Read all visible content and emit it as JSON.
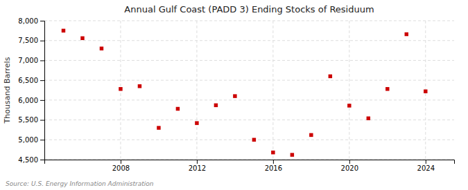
{
  "chart_data": {
    "type": "scatter",
    "title": "Annual Gulf Coast (PADD 3) Ending Stocks of Residuum",
    "ylabel": "Thousand Barrels",
    "x": [
      2005,
      2006,
      2007,
      2008,
      2009,
      2010,
      2011,
      2012,
      2013,
      2014,
      2015,
      2016,
      2017,
      2018,
      2019,
      2020,
      2021,
      2022,
      2023,
      2024
    ],
    "values": [
      7750,
      7560,
      7300,
      6280,
      6350,
      5300,
      5780,
      5420,
      5870,
      6100,
      5000,
      4680,
      4620,
      5120,
      6600,
      5860,
      5540,
      6280,
      7660,
      6220
    ],
    "color": "#cc0000",
    "marker": "square",
    "xlim": [
      2004,
      2025.5
    ],
    "xticks": [
      2008,
      2012,
      2016,
      2020,
      2024
    ],
    "ylim": [
      4500,
      8000
    ],
    "yticks": [
      {
        "value": 4500,
        "label": "4,500"
      },
      {
        "value": 5000,
        "label": "5,000"
      },
      {
        "value": 5500,
        "label": "5,500"
      },
      {
        "value": 6000,
        "label": "6,000"
      },
      {
        "value": 6500,
        "label": "6,500"
      },
      {
        "value": 7000,
        "label": "7,000"
      },
      {
        "value": 7500,
        "label": "7,500"
      },
      {
        "value": 8000,
        "label": "8,000"
      }
    ],
    "grid": true,
    "annotations": [
      "Source: U.S. Energy Information Administration"
    ]
  }
}
